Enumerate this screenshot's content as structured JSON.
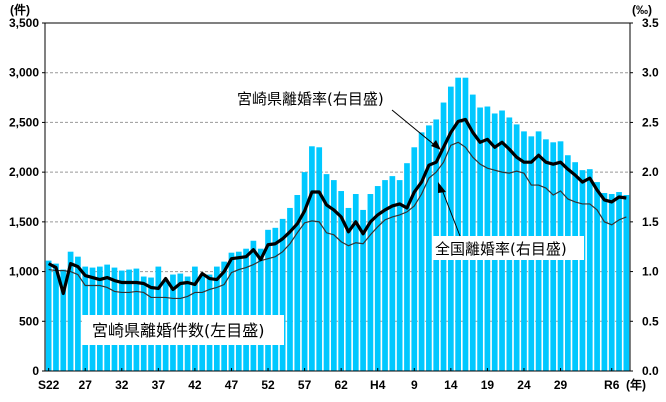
{
  "chart_data": {
    "type": "bar",
    "title": "",
    "left_unit": "(件)",
    "right_unit": "(‰)",
    "x_unit": "(年)",
    "colors": {
      "bar": "#00c8ff",
      "miyazaki_rate": "#000000",
      "national_rate": "#333333",
      "grid": "#999999"
    },
    "left_axis": {
      "ylim": [
        0,
        3500
      ],
      "ticks": [
        "0",
        "500",
        "1,000",
        "1,500",
        "2,000",
        "2,500",
        "3,000",
        "3,500"
      ]
    },
    "right_axis": {
      "ylim": [
        0,
        3.5
      ],
      "ticks": [
        "0.0",
        "0.5",
        "1.0",
        "1.5",
        "2.0",
        "2.5",
        "3.0",
        "3.5"
      ]
    },
    "x_ticks": [
      {
        "index": 0,
        "label": "S22"
      },
      {
        "index": 5,
        "label": "27"
      },
      {
        "index": 10,
        "label": "32"
      },
      {
        "index": 15,
        "label": "37"
      },
      {
        "index": 20,
        "label": "42"
      },
      {
        "index": 25,
        "label": "47"
      },
      {
        "index": 30,
        "label": "52"
      },
      {
        "index": 35,
        "label": "57"
      },
      {
        "index": 40,
        "label": "62"
      },
      {
        "index": 45,
        "label": "H4"
      },
      {
        "index": 50,
        "label": "9"
      },
      {
        "index": 55,
        "label": "14"
      },
      {
        "index": 60,
        "label": "19"
      },
      {
        "index": 65,
        "label": "24"
      },
      {
        "index": 70,
        "label": "29"
      },
      {
        "index": 77,
        "label": "R6"
      }
    ],
    "series": [
      {
        "name": "宮崎県離婚件数(左目盛)",
        "type": "bar",
        "axis": "left",
        "values": [
          1110,
          1080,
          1020,
          1200,
          1150,
          1050,
          1040,
          1050,
          1070,
          1040,
          1010,
          1020,
          1030,
          950,
          940,
          1050,
          910,
          970,
          980,
          950,
          1050,
          970,
          970,
          1050,
          1100,
          1190,
          1200,
          1230,
          1310,
          1230,
          1420,
          1440,
          1530,
          1640,
          1770,
          2000,
          2260,
          2250,
          1980,
          1920,
          1810,
          1640,
          1780,
          1620,
          1780,
          1860,
          1920,
          1960,
          1920,
          2090,
          2250,
          2400,
          2470,
          2530,
          2700,
          2860,
          2950,
          2950,
          2780,
          2650,
          2660,
          2590,
          2620,
          2550,
          2480,
          2410,
          2360,
          2410,
          2330,
          2300,
          2310,
          2170,
          2100,
          2020,
          2030,
          1900,
          1790,
          1780,
          1800,
          1770
        ]
      },
      {
        "name": "宮崎県離婚率(右目盛)",
        "type": "line",
        "axis": "right",
        "values": [
          1.08,
          1.04,
          0.78,
          1.08,
          1.05,
          0.96,
          0.94,
          0.92,
          0.94,
          0.91,
          0.89,
          0.89,
          0.89,
          0.88,
          0.84,
          0.83,
          0.93,
          0.82,
          0.88,
          0.89,
          0.87,
          0.98,
          0.93,
          0.92,
          1.0,
          1.13,
          1.14,
          1.15,
          1.22,
          1.12,
          1.27,
          1.28,
          1.33,
          1.4,
          1.48,
          1.61,
          1.8,
          1.8,
          1.67,
          1.62,
          1.55,
          1.4,
          1.5,
          1.38,
          1.5,
          1.57,
          1.62,
          1.66,
          1.68,
          1.64,
          1.8,
          1.9,
          2.07,
          2.1,
          2.25,
          2.4,
          2.51,
          2.53,
          2.4,
          2.3,
          2.33,
          2.25,
          2.3,
          2.23,
          2.15,
          2.1,
          2.1,
          2.17,
          2.1,
          2.08,
          2.1,
          2.03,
          1.97,
          1.9,
          1.94,
          1.82,
          1.72,
          1.7,
          1.75,
          1.74
        ]
      },
      {
        "name": "全国離婚率(右目盛)",
        "type": "line",
        "axis": "right",
        "values": [
          1.02,
          1.01,
          1.01,
          1.0,
          0.97,
          0.86,
          0.86,
          0.86,
          0.84,
          0.8,
          0.79,
          0.79,
          0.8,
          0.79,
          0.74,
          0.74,
          0.74,
          0.73,
          0.73,
          0.75,
          0.79,
          0.79,
          0.82,
          0.84,
          0.87,
          0.99,
          1.02,
          1.04,
          1.07,
          1.11,
          1.13,
          1.15,
          1.2,
          1.28,
          1.39,
          1.49,
          1.51,
          1.5,
          1.39,
          1.37,
          1.3,
          1.26,
          1.29,
          1.28,
          1.37,
          1.45,
          1.52,
          1.55,
          1.57,
          1.6,
          1.66,
          1.78,
          1.94,
          2.0,
          2.1,
          2.27,
          2.3,
          2.25,
          2.15,
          2.08,
          2.04,
          2.02,
          2.0,
          1.99,
          2.01,
          1.99,
          1.87,
          1.87,
          1.84,
          1.77,
          1.81,
          1.73,
          1.7,
          1.68,
          1.68,
          1.62,
          1.5,
          1.47,
          1.52,
          1.55
        ]
      }
    ],
    "annotations": [
      {
        "text": "宮崎県離婚率(右目盛)",
        "target": "miyazaki_rate"
      },
      {
        "text": "全国離婚率(右目盛)",
        "target": "national_rate"
      },
      {
        "text": "宮崎県離婚件数(左目盛)",
        "target": "miyazaki_count"
      }
    ]
  }
}
